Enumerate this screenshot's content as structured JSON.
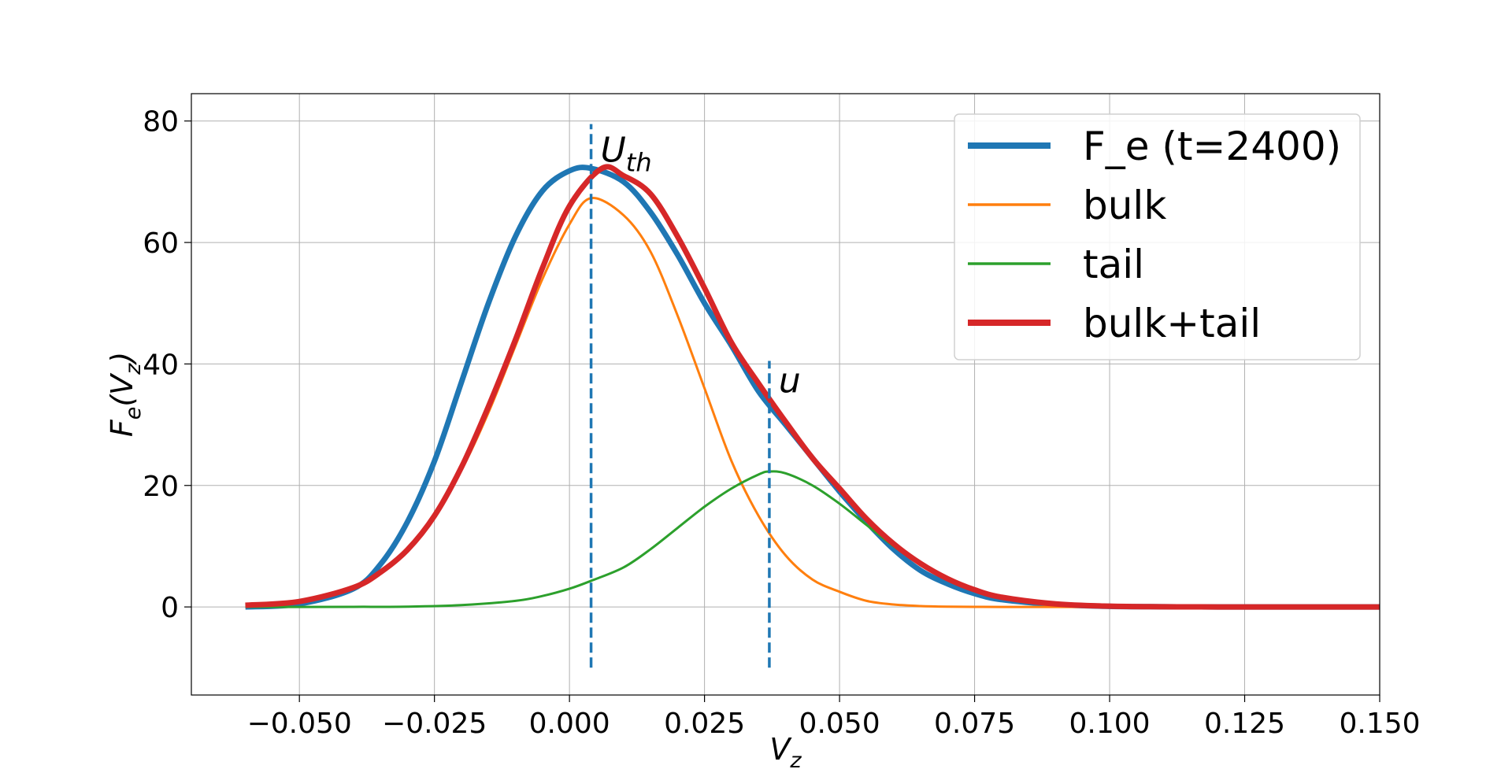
{
  "chart_data": {
    "type": "line",
    "xlabel_main": "V",
    "xlabel_sub": "z",
    "ylabel_parts": [
      "F",
      "e",
      "(V",
      "z",
      ")"
    ],
    "xlim": [
      -0.07,
      0.15
    ],
    "ylim": [
      -14.5,
      84.5
    ],
    "xticks": [
      -0.05,
      -0.025,
      0.0,
      0.025,
      0.05,
      0.075,
      0.1,
      0.125,
      0.15
    ],
    "xtick_labels": [
      "−0.050",
      "−0.025",
      "0.000",
      "0.025",
      "0.050",
      "0.075",
      "0.100",
      "0.125",
      "0.150"
    ],
    "yticks": [
      0,
      20,
      40,
      60,
      80
    ],
    "ytick_labels": [
      "0",
      "20",
      "40",
      "60",
      "80"
    ],
    "grid": true,
    "legend_position": "upper-right",
    "x_range": [
      -0.06,
      0.15
    ],
    "series": [
      {
        "name": "F_e (t=2400)",
        "color": "#1f77b4",
        "weight": "thick",
        "x": [
          -0.06,
          -0.05,
          -0.04,
          -0.035,
          -0.03,
          -0.025,
          -0.02,
          -0.015,
          -0.01,
          -0.005,
          0.0,
          0.004,
          0.01,
          0.015,
          0.02,
          0.025,
          0.03,
          0.035,
          0.04,
          0.045,
          0.05,
          0.055,
          0.06,
          0.065,
          0.07,
          0.075,
          0.08,
          0.09,
          0.1,
          0.11,
          0.12,
          0.15
        ],
        "y": [
          0.0,
          0.5,
          3.0,
          7.0,
          14.0,
          24.0,
          37.0,
          50.0,
          61.0,
          68.5,
          71.8,
          72.2,
          70.0,
          65.0,
          58.0,
          50.0,
          43.0,
          35.5,
          30.0,
          24.5,
          19.0,
          14.0,
          9.5,
          6.0,
          3.8,
          2.2,
          1.2,
          0.4,
          0.1,
          0.03,
          0.0,
          0.0
        ]
      },
      {
        "name": "bulk",
        "color": "#ff7f0e",
        "weight": "thin",
        "x": [
          -0.06,
          -0.05,
          -0.04,
          -0.035,
          -0.03,
          -0.025,
          -0.02,
          -0.015,
          -0.01,
          -0.005,
          0.0,
          0.004,
          0.01,
          0.015,
          0.02,
          0.025,
          0.03,
          0.035,
          0.04,
          0.045,
          0.05,
          0.055,
          0.06,
          0.065,
          0.07,
          0.075,
          0.08,
          0.09,
          0.1,
          0.11,
          0.12,
          0.15
        ],
        "y": [
          0.27,
          0.9,
          3.2,
          5.7,
          9.4,
          15.0,
          22.5,
          32.0,
          43.0,
          54.0,
          63.0,
          67.3,
          64.5,
          58.5,
          48.0,
          36.0,
          24.0,
          15.0,
          8.5,
          4.5,
          2.5,
          1.0,
          0.4,
          0.15,
          0.05,
          0.02,
          0.0,
          0.0,
          0.0,
          0.0,
          0.0,
          0.0
        ]
      },
      {
        "name": "tail",
        "color": "#2ca02c",
        "weight": "thin",
        "x": [
          -0.06,
          -0.05,
          -0.04,
          -0.03,
          -0.02,
          -0.01,
          -0.005,
          0.0,
          0.004,
          0.01,
          0.015,
          0.02,
          0.025,
          0.03,
          0.035,
          0.037,
          0.04,
          0.045,
          0.05,
          0.055,
          0.06,
          0.065,
          0.07,
          0.075,
          0.08,
          0.09,
          0.1,
          0.11,
          0.12,
          0.15
        ],
        "y": [
          0.0,
          0.0,
          0.02,
          0.05,
          0.3,
          1.0,
          1.8,
          3.0,
          4.3,
          6.5,
          9.5,
          13.0,
          16.5,
          19.5,
          21.8,
          22.3,
          22.0,
          20.0,
          17.0,
          13.5,
          10.0,
          7.0,
          4.6,
          2.8,
          1.6,
          0.5,
          0.12,
          0.03,
          0.0,
          0.0
        ]
      },
      {
        "name": "bulk+tail",
        "color": "#d62728",
        "weight": "thick",
        "x": [
          -0.06,
          -0.05,
          -0.04,
          -0.035,
          -0.03,
          -0.025,
          -0.02,
          -0.015,
          -0.01,
          -0.005,
          0.0,
          0.006,
          0.01,
          0.015,
          0.02,
          0.025,
          0.03,
          0.035,
          0.04,
          0.045,
          0.05,
          0.055,
          0.06,
          0.065,
          0.07,
          0.075,
          0.08,
          0.09,
          0.1,
          0.11,
          0.12,
          0.15
        ],
        "y": [
          0.27,
          0.9,
          3.2,
          5.7,
          9.4,
          15.0,
          23.0,
          33.0,
          44.0,
          55.8,
          66.0,
          72.2,
          71.0,
          68.0,
          61.0,
          52.5,
          43.5,
          36.8,
          30.5,
          24.5,
          19.5,
          14.5,
          10.4,
          7.15,
          4.65,
          2.82,
          1.6,
          0.5,
          0.12,
          0.03,
          0.0,
          0.0
        ]
      }
    ],
    "annotations": [
      {
        "x": 0.004,
        "y_range": [
          -10,
          79.5
        ],
        "color": "#1f77b4",
        "label_main": "U",
        "label_sub": "th"
      },
      {
        "x": 0.037,
        "y_range": [
          -10,
          40.5
        ],
        "color": "#1f77b4",
        "label_main": "u",
        "label_sub": ""
      }
    ]
  }
}
